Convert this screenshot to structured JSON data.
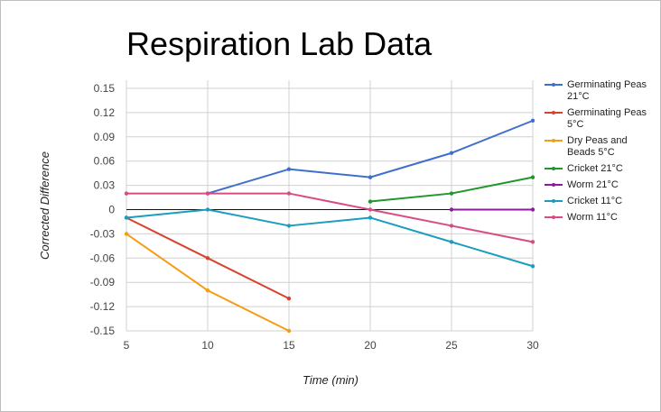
{
  "chart_data": {
    "type": "line",
    "title": "Respiration Lab Data",
    "xlabel": "Time (min)",
    "ylabel": "Corrected Difference",
    "x": [
      5,
      10,
      15,
      20,
      25,
      30
    ],
    "xticks": [
      "5",
      "10",
      "15",
      "20",
      "25",
      "30"
    ],
    "xlim": [
      5,
      30
    ],
    "ylim": [
      -0.15,
      0.15
    ],
    "yticks": [
      "0.15",
      "0.12",
      "0.09",
      "0.06",
      "0.03",
      "0",
      "-0.03",
      "-0.06",
      "-0.09",
      "-0.12",
      "-0.15"
    ],
    "grid": true,
    "legend_position": "right",
    "series": [
      {
        "name": "Germinating Peas 21°C",
        "color": "#3f6fcc",
        "values": [
          null,
          0.02,
          0.05,
          0.04,
          0.07,
          0.11
        ]
      },
      {
        "name": "Germinating Peas 5°C",
        "color": "#d9422a",
        "values": [
          -0.01,
          -0.06,
          -0.11,
          null,
          null,
          null
        ]
      },
      {
        "name": "Dry Peas and Beads 5°C",
        "color": "#f59c12",
        "values": [
          -0.03,
          -0.1,
          -0.15,
          null,
          null,
          null
        ]
      },
      {
        "name": "Cricket 21°C",
        "color": "#20972c",
        "values": [
          null,
          null,
          null,
          0.01,
          0.02,
          0.04
        ]
      },
      {
        "name": "Worm 21°C",
        "color": "#8e1a9c",
        "values": [
          null,
          null,
          null,
          null,
          0.0,
          0.0
        ]
      },
      {
        "name": "Cricket 11°C",
        "color": "#1a9dbf",
        "values": [
          -0.01,
          0.0,
          -0.02,
          -0.01,
          -0.04,
          -0.07
        ]
      },
      {
        "name": "Worm 11°C",
        "color": "#d84c83",
        "values": [
          0.02,
          0.02,
          0.02,
          0.0,
          -0.02,
          -0.04
        ]
      }
    ]
  }
}
